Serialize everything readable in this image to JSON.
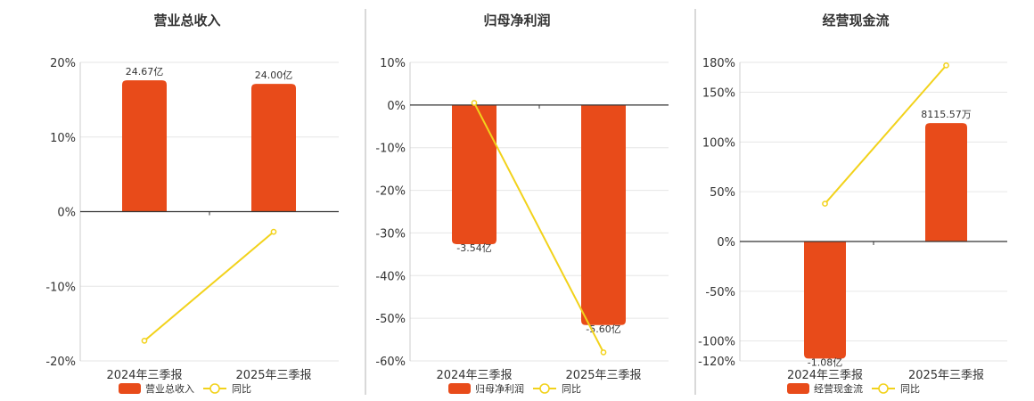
{
  "colors": {
    "bar": "#e84b1a",
    "line": "#f2d21b",
    "grid": "#e6e6e6",
    "axis": "#333333",
    "divider": "#b3b3b3"
  },
  "chart_data": [
    {
      "type": "bar",
      "title": "营业总收入",
      "categories": [
        "2024年三季报",
        "2025年三季报"
      ],
      "series": [
        {
          "name": "营业总收入",
          "type": "bar",
          "labels": [
            "24.67亿",
            "24.00亿"
          ],
          "values": [
            24.67,
            24.0
          ],
          "unit": "亿"
        },
        {
          "name": "同比",
          "type": "line",
          "values": [
            -17.3,
            -2.7
          ],
          "unit": "%"
        }
      ],
      "ylim": [
        -20,
        20
      ],
      "yticks": [
        20,
        10,
        0,
        -10,
        -20
      ],
      "ytick_labels": [
        "20%",
        "10%",
        "0%",
        "-10%",
        "-20%"
      ],
      "bar_scale_max": 24.67
    },
    {
      "type": "bar",
      "title": "归母净利润",
      "categories": [
        "2024年三季报",
        "2025年三季报"
      ],
      "series": [
        {
          "name": "归母净利润",
          "type": "bar",
          "labels": [
            "-3.54亿",
            "-5.60亿"
          ],
          "values": [
            -3.54,
            -5.6
          ],
          "unit": "亿"
        },
        {
          "name": "同比",
          "type": "line",
          "values": [
            0.5,
            -58
          ],
          "unit": "%"
        }
      ],
      "ylim": [
        -60,
        10
      ],
      "yticks": [
        10,
        0,
        -10,
        -20,
        -30,
        -40,
        -50,
        -60
      ],
      "ytick_labels": [
        "10%",
        "0%",
        "-10%",
        "-20%",
        "-30%",
        "-40%",
        "-50%",
        "-60%"
      ],
      "bar_scale_max": 5.6
    },
    {
      "type": "bar",
      "title": "经营现金流",
      "categories": [
        "2024年三季报",
        "2025年三季报"
      ],
      "series": [
        {
          "name": "经营现金流",
          "type": "bar",
          "labels": [
            "-1.08亿",
            "8115.57万"
          ],
          "values": [
            -1.08,
            0.811557
          ],
          "unit": "亿"
        },
        {
          "name": "同比",
          "type": "line",
          "values": [
            38,
            177
          ],
          "unit": "%"
        }
      ],
      "ylim": [
        -120,
        180
      ],
      "yticks": [
        180,
        150,
        100,
        50,
        0,
        -50,
        -100,
        -120
      ],
      "ytick_labels": [
        "180%",
        "150%",
        "100%",
        "50%",
        "0%",
        "-50%",
        "-100%",
        "-120%"
      ],
      "bar_scale_max": 1.08
    }
  ]
}
